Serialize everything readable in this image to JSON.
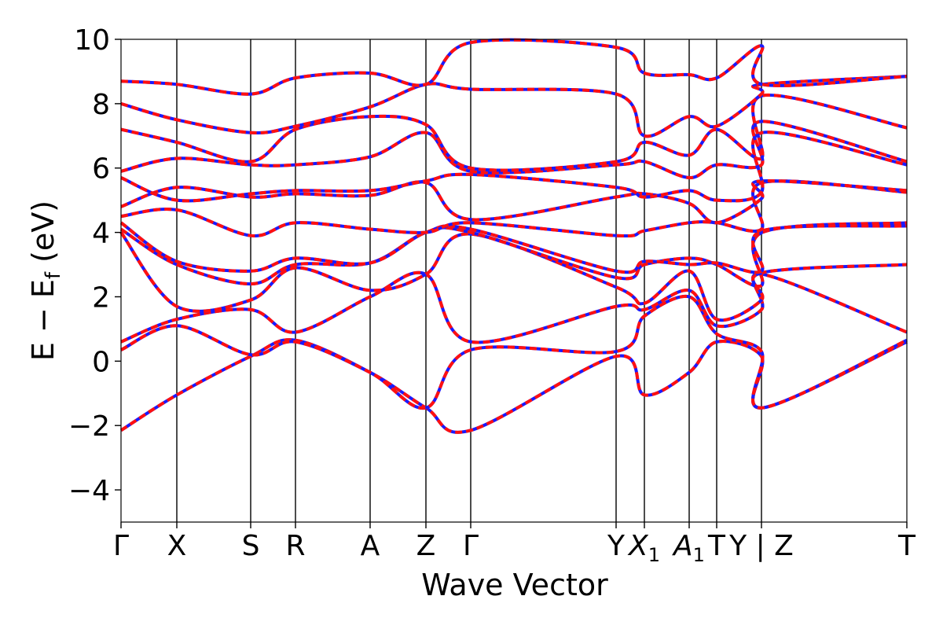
{
  "chart_data": {
    "type": "line",
    "title": "",
    "xlabel": "Wave Vector",
    "ylabel": "E − E_f (eV)",
    "ylabel_main": "E − E",
    "ylabel_sub": "f",
    "ylabel_unit": " (eV)",
    "ylim": [
      -5,
      10
    ],
    "yticks": [
      10,
      8,
      6,
      4,
      2,
      0,
      -2,
      -4
    ],
    "ytick_labels": [
      "10",
      "8",
      "6",
      "4",
      "2",
      "0",
      "−2",
      "−4"
    ],
    "grid": false,
    "legend": "none",
    "xlim": [
      0,
      1
    ],
    "high_symmetry_points": [
      {
        "pos": 0.0,
        "label": "Γ",
        "sub": ""
      },
      {
        "pos": 0.071,
        "label": "X",
        "sub": ""
      },
      {
        "pos": 0.165,
        "label": "S",
        "sub": ""
      },
      {
        "pos": 0.222,
        "label": "R",
        "sub": ""
      },
      {
        "pos": 0.317,
        "label": "A",
        "sub": ""
      },
      {
        "pos": 0.388,
        "label": "Z",
        "sub": ""
      },
      {
        "pos": 0.445,
        "label": "Γ",
        "sub": ""
      },
      {
        "pos": 0.63,
        "label": "Y",
        "sub": ""
      },
      {
        "pos": 0.666,
        "label": "X",
        "sub": "1"
      },
      {
        "pos": 0.723,
        "label": "A",
        "sub": "1"
      },
      {
        "pos": 0.758,
        "label": "T",
        "sub": ""
      },
      {
        "pos": 0.815,
        "label": "Y | Z",
        "sub": ""
      },
      {
        "pos": 1.0,
        "label": "T",
        "sub": ""
      }
    ],
    "band_x": [
      0,
      0.071,
      0.165,
      0.222,
      0.317,
      0.388,
      0.445,
      0.63,
      0.666,
      0.723,
      0.758,
      0.815,
      0.816,
      1.0
    ],
    "series": [
      {
        "values": [
          -2.15,
          -1.05,
          0.15,
          0.65,
          -0.35,
          -1.45,
          -2.15,
          0.15,
          -1.05,
          -0.35,
          0.6,
          0.15,
          -1.45,
          0.6
        ]
      },
      {
        "values": [
          0.35,
          1.1,
          0.2,
          0.6,
          -0.35,
          -1.45,
          0.35,
          0.3,
          1.4,
          2.0,
          0.85,
          0.3,
          -1.45,
          0.65
        ]
      },
      {
        "values": [
          0.6,
          1.3,
          1.6,
          0.9,
          2.0,
          2.7,
          0.6,
          1.7,
          1.6,
          2.2,
          1.1,
          1.6,
          2.7,
          0.9
        ]
      },
      {
        "values": [
          4.0,
          1.7,
          1.9,
          2.9,
          2.2,
          2.7,
          3.95,
          2.3,
          1.8,
          2.8,
          1.3,
          1.9,
          2.75,
          3.0
        ]
      },
      {
        "values": [
          4.1,
          3.0,
          2.4,
          3.0,
          3.05,
          4.0,
          4.0,
          2.6,
          3.0,
          3.2,
          3.0,
          2.35,
          4.0,
          4.3
        ]
      },
      {
        "values": [
          4.3,
          3.1,
          2.8,
          3.2,
          3.05,
          4.0,
          4.1,
          2.8,
          3.1,
          3.0,
          3.05,
          2.8,
          4.05,
          4.2
        ]
      },
      {
        "values": [
          4.5,
          4.7,
          3.9,
          4.3,
          4.1,
          4.0,
          4.3,
          3.9,
          4.05,
          4.3,
          4.3,
          4.1,
          5.55,
          5.25
        ]
      },
      {
        "values": [
          4.8,
          5.4,
          5.1,
          5.2,
          5.15,
          5.55,
          4.4,
          5.1,
          5.2,
          4.9,
          4.3,
          5.05,
          5.6,
          5.3
        ]
      },
      {
        "values": [
          5.7,
          5.0,
          5.2,
          5.3,
          5.3,
          5.6,
          5.8,
          5.4,
          5.1,
          5.3,
          5.0,
          5.25,
          7.1,
          6.1
        ]
      },
      {
        "values": [
          5.9,
          6.3,
          6.1,
          6.1,
          6.35,
          7.1,
          5.9,
          6.1,
          6.2,
          5.7,
          6.1,
          6.1,
          7.45,
          6.2
        ]
      },
      {
        "values": [
          7.2,
          6.8,
          6.2,
          7.2,
          7.6,
          7.35,
          6.0,
          6.2,
          6.8,
          6.4,
          7.2,
          6.3,
          8.25,
          7.25
        ]
      },
      {
        "values": [
          8.0,
          7.5,
          7.1,
          7.3,
          7.9,
          8.6,
          8.45,
          8.3,
          7.0,
          7.6,
          7.3,
          8.3,
          8.6,
          8.85
        ]
      },
      {
        "values": [
          8.7,
          8.6,
          8.3,
          8.8,
          8.95,
          8.6,
          9.9,
          9.75,
          8.95,
          8.9,
          8.8,
          9.8,
          8.6,
          8.85
        ]
      }
    ]
  }
}
